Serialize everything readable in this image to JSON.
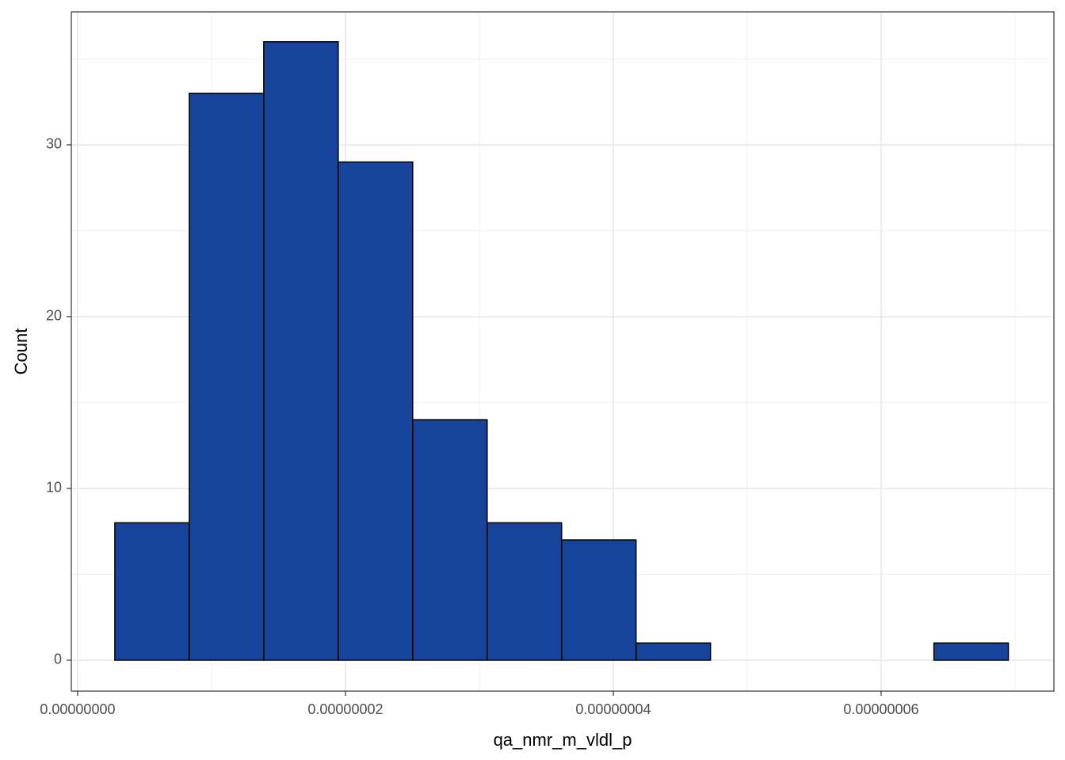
{
  "chart_data": {
    "type": "histogram",
    "x_label": "qa_nmr_m_vldl_p",
    "y_label": "Count",
    "bins": [
      2.78e-09,
      8.34e-09,
      1.39e-08,
      1.946e-08,
      2.502e-08,
      3.058e-08,
      3.614e-08,
      4.17e-08,
      4.726e-08,
      5.282e-08,
      5.838e-08,
      6.394e-08,
      6.95e-08
    ],
    "counts": [
      8,
      33,
      36,
      29,
      14,
      8,
      7,
      1,
      0,
      0,
      0,
      1
    ],
    "color": "#17439b",
    "edge_color": "#000000",
    "xlim": [
      -4.7e-10,
      7.29e-08
    ],
    "ylim": [
      -1.8,
      37.74
    ],
    "xticks": [
      {
        "value": 0,
        "label": "0.00000000"
      },
      {
        "value": 2e-08,
        "label": "0.00000002"
      },
      {
        "value": 4e-08,
        "label": "0.00000004"
      },
      {
        "value": 6e-08,
        "label": "0.00000006"
      }
    ],
    "yticks": [
      0,
      10,
      20,
      30
    ],
    "x_minor_ticks": [
      1e-08,
      3e-08,
      5e-08,
      7e-08
    ],
    "y_minor_ticks": [
      5,
      15,
      25,
      35
    ],
    "grid": true
  }
}
